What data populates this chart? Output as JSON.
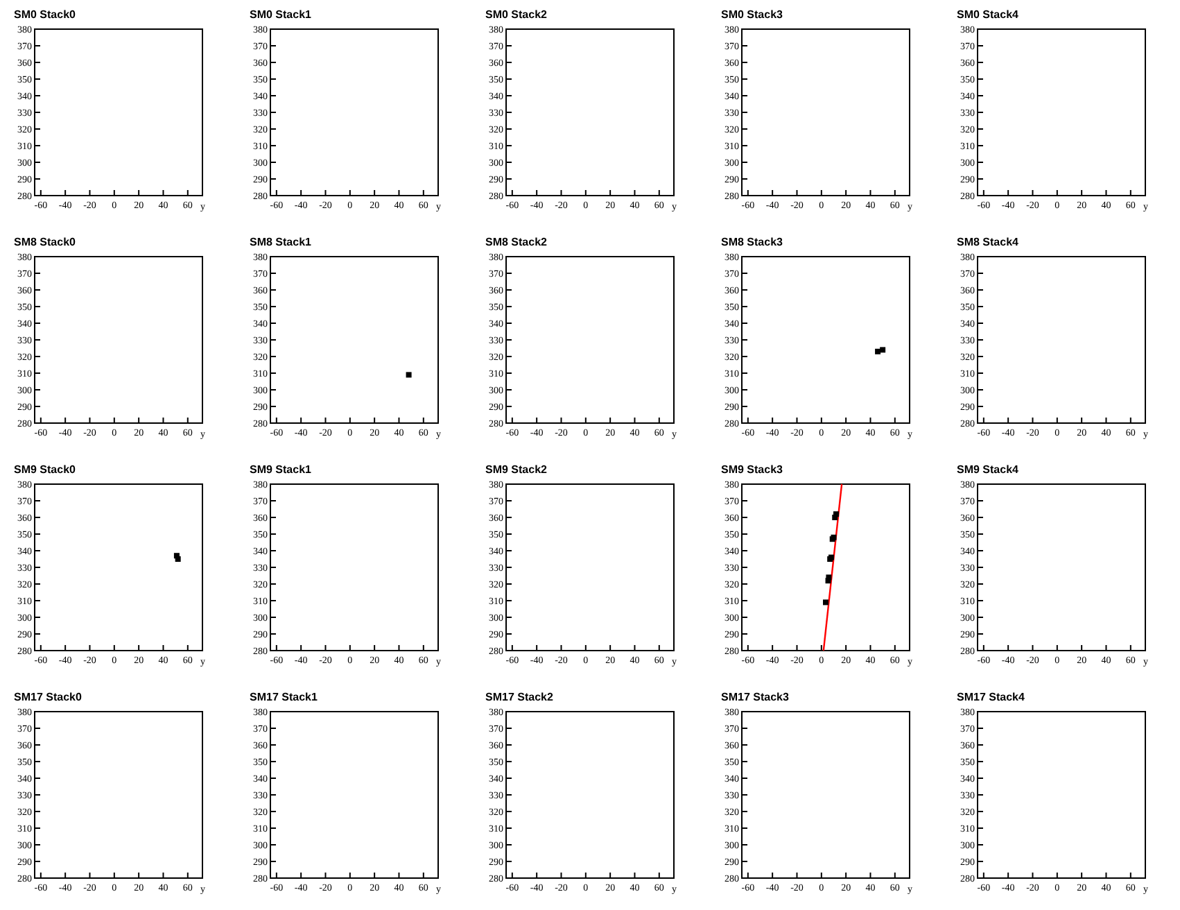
{
  "chart_data": [
    {
      "type": "scatter",
      "title": "SM0 Stack0",
      "xlabel": "y",
      "xlim": [
        -65,
        72
      ],
      "xticks": [
        -60,
        -40,
        -20,
        0,
        20,
        40,
        60
      ],
      "ylim": [
        280,
        380
      ],
      "yticks": [
        280,
        290,
        300,
        310,
        320,
        330,
        340,
        350,
        360,
        370,
        380
      ]
    },
    {
      "type": "scatter",
      "title": "SM0 Stack1",
      "xlabel": "y",
      "xlim": [
        -65,
        72
      ],
      "xticks": [
        -60,
        -40,
        -20,
        0,
        20,
        40,
        60
      ],
      "ylim": [
        280,
        380
      ],
      "yticks": [
        280,
        290,
        300,
        310,
        320,
        330,
        340,
        350,
        360,
        370,
        380
      ]
    },
    {
      "type": "scatter",
      "title": "SM0 Stack2",
      "xlabel": "y",
      "xlim": [
        -65,
        72
      ],
      "xticks": [
        -60,
        -40,
        -20,
        0,
        20,
        40,
        60
      ],
      "ylim": [
        280,
        380
      ],
      "yticks": [
        280,
        290,
        300,
        310,
        320,
        330,
        340,
        350,
        360,
        370,
        380
      ]
    },
    {
      "type": "scatter",
      "title": "SM0 Stack3",
      "xlabel": "y",
      "xlim": [
        -65,
        72
      ],
      "xticks": [
        -60,
        -40,
        -20,
        0,
        20,
        40,
        60
      ],
      "ylim": [
        280,
        380
      ],
      "yticks": [
        280,
        290,
        300,
        310,
        320,
        330,
        340,
        350,
        360,
        370,
        380
      ]
    },
    {
      "type": "scatter",
      "title": "SM0 Stack4",
      "xlabel": "y",
      "xlim": [
        -65,
        72
      ],
      "xticks": [
        -60,
        -40,
        -20,
        0,
        20,
        40,
        60
      ],
      "ylim": [
        280,
        380
      ],
      "yticks": [
        280,
        290,
        300,
        310,
        320,
        330,
        340,
        350,
        360,
        370,
        380
      ]
    },
    {
      "type": "scatter",
      "title": "SM8 Stack0",
      "xlabel": "y",
      "xlim": [
        -65,
        72
      ],
      "xticks": [
        -60,
        -40,
        -20,
        0,
        20,
        40,
        60
      ],
      "ylim": [
        280,
        380
      ],
      "yticks": [
        280,
        290,
        300,
        310,
        320,
        330,
        340,
        350,
        360,
        370,
        380
      ]
    },
    {
      "type": "scatter",
      "title": "SM8 Stack1",
      "xlabel": "y",
      "xlim": [
        -65,
        72
      ],
      "xticks": [
        -60,
        -40,
        -20,
        0,
        20,
        40,
        60
      ],
      "ylim": [
        280,
        380
      ],
      "yticks": [
        280,
        290,
        300,
        310,
        320,
        330,
        340,
        350,
        360,
        370,
        380
      ],
      "series": [
        {
          "color": "#000000",
          "marker": "square",
          "x": [
            48
          ],
          "values": [
            309
          ]
        }
      ]
    },
    {
      "type": "scatter",
      "title": "SM8 Stack2",
      "xlabel": "y",
      "xlim": [
        -65,
        72
      ],
      "xticks": [
        -60,
        -40,
        -20,
        0,
        20,
        40,
        60
      ],
      "ylim": [
        280,
        380
      ],
      "yticks": [
        280,
        290,
        300,
        310,
        320,
        330,
        340,
        350,
        360,
        370,
        380
      ]
    },
    {
      "type": "scatter",
      "title": "SM8 Stack3",
      "xlabel": "y",
      "xlim": [
        -65,
        72
      ],
      "xticks": [
        -60,
        -40,
        -20,
        0,
        20,
        40,
        60
      ],
      "ylim": [
        280,
        380
      ],
      "yticks": [
        280,
        290,
        300,
        310,
        320,
        330,
        340,
        350,
        360,
        370,
        380
      ],
      "series": [
        {
          "color": "#000000",
          "marker": "square",
          "x": [
            46,
            50
          ],
          "values": [
            323,
            324
          ]
        }
      ]
    },
    {
      "type": "scatter",
      "title": "SM8 Stack4",
      "xlabel": "y",
      "xlim": [
        -65,
        72
      ],
      "xticks": [
        -60,
        -40,
        -20,
        0,
        20,
        40,
        60
      ],
      "ylim": [
        280,
        380
      ],
      "yticks": [
        280,
        290,
        300,
        310,
        320,
        330,
        340,
        350,
        360,
        370,
        380
      ]
    },
    {
      "type": "scatter",
      "title": "SM9 Stack0",
      "xlabel": "y",
      "xlim": [
        -65,
        72
      ],
      "xticks": [
        -60,
        -40,
        -20,
        0,
        20,
        40,
        60
      ],
      "ylim": [
        280,
        380
      ],
      "yticks": [
        280,
        290,
        300,
        310,
        320,
        330,
        340,
        350,
        360,
        370,
        380
      ],
      "series": [
        {
          "color": "#000000",
          "marker": "square",
          "x": [
            51,
            52
          ],
          "values": [
            337,
            335
          ]
        }
      ]
    },
    {
      "type": "scatter",
      "title": "SM9 Stack1",
      "xlabel": "y",
      "xlim": [
        -65,
        72
      ],
      "xticks": [
        -60,
        -40,
        -20,
        0,
        20,
        40,
        60
      ],
      "ylim": [
        280,
        380
      ],
      "yticks": [
        280,
        290,
        300,
        310,
        320,
        330,
        340,
        350,
        360,
        370,
        380
      ]
    },
    {
      "type": "scatter",
      "title": "SM9 Stack2",
      "xlabel": "y",
      "xlim": [
        -65,
        72
      ],
      "xticks": [
        -60,
        -40,
        -20,
        0,
        20,
        40,
        60
      ],
      "ylim": [
        280,
        380
      ],
      "yticks": [
        280,
        290,
        300,
        310,
        320,
        330,
        340,
        350,
        360,
        370,
        380
      ]
    },
    {
      "type": "scatter",
      "title": "SM9 Stack3",
      "xlabel": "y",
      "xlim": [
        -65,
        72
      ],
      "xticks": [
        -60,
        -40,
        -20,
        0,
        20,
        40,
        60
      ],
      "ylim": [
        280,
        380
      ],
      "yticks": [
        280,
        290,
        300,
        310,
        320,
        330,
        340,
        350,
        360,
        370,
        380
      ],
      "series": [
        {
          "type": "line",
          "color": "#ff0000",
          "x": [
            1.7,
            16.6
          ],
          "values": [
            280,
            380
          ]
        },
        {
          "color": "#000000",
          "marker": "square",
          "x": [
            3.5,
            5.5,
            6,
            7,
            8,
            9,
            10,
            11,
            12
          ],
          "values": [
            309,
            322,
            324,
            335,
            336,
            347,
            348,
            360,
            362
          ]
        }
      ]
    },
    {
      "type": "scatter",
      "title": "SM9 Stack4",
      "xlabel": "y",
      "xlim": [
        -65,
        72
      ],
      "xticks": [
        -60,
        -40,
        -20,
        0,
        20,
        40,
        60
      ],
      "ylim": [
        280,
        380
      ],
      "yticks": [
        280,
        290,
        300,
        310,
        320,
        330,
        340,
        350,
        360,
        370,
        380
      ]
    },
    {
      "type": "scatter",
      "title": "SM17 Stack0",
      "xlabel": "y",
      "xlim": [
        -65,
        72
      ],
      "xticks": [
        -60,
        -40,
        -20,
        0,
        20,
        40,
        60
      ],
      "ylim": [
        280,
        380
      ],
      "yticks": [
        280,
        290,
        300,
        310,
        320,
        330,
        340,
        350,
        360,
        370,
        380
      ]
    },
    {
      "type": "scatter",
      "title": "SM17 Stack1",
      "xlabel": "y",
      "xlim": [
        -65,
        72
      ],
      "xticks": [
        -60,
        -40,
        -20,
        0,
        20,
        40,
        60
      ],
      "ylim": [
        280,
        380
      ],
      "yticks": [
        280,
        290,
        300,
        310,
        320,
        330,
        340,
        350,
        360,
        370,
        380
      ]
    },
    {
      "type": "scatter",
      "title": "SM17 Stack2",
      "xlabel": "y",
      "xlim": [
        -65,
        72
      ],
      "xticks": [
        -60,
        -40,
        -20,
        0,
        20,
        40,
        60
      ],
      "ylim": [
        280,
        380
      ],
      "yticks": [
        280,
        290,
        300,
        310,
        320,
        330,
        340,
        350,
        360,
        370,
        380
      ]
    },
    {
      "type": "scatter",
      "title": "SM17 Stack3",
      "xlabel": "y",
      "xlim": [
        -65,
        72
      ],
      "xticks": [
        -60,
        -40,
        -20,
        0,
        20,
        40,
        60
      ],
      "ylim": [
        280,
        380
      ],
      "yticks": [
        280,
        290,
        300,
        310,
        320,
        330,
        340,
        350,
        360,
        370,
        380
      ]
    },
    {
      "type": "scatter",
      "title": "SM17 Stack4",
      "xlabel": "y",
      "xlim": [
        -65,
        72
      ],
      "xticks": [
        -60,
        -40,
        -20,
        0,
        20,
        40,
        60
      ],
      "ylim": [
        280,
        380
      ],
      "yticks": [
        280,
        290,
        300,
        310,
        320,
        330,
        340,
        350,
        360,
        370,
        380
      ]
    }
  ]
}
